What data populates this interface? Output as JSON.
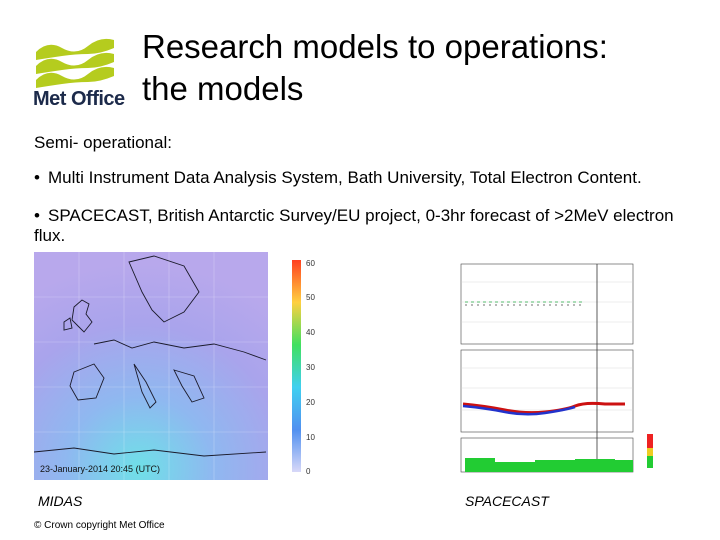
{
  "logo": {
    "text": "Met Office",
    "accent": "#b5cc1e"
  },
  "slide": {
    "title_line1": "Research models to operations:",
    "title_line2": "the models",
    "subtitle": "Semi- operational:",
    "bullets": [
      "Multi Instrument Data Analysis System, Bath University, Total Electron Content.",
      "SPACECAST, British Antarctic Survey/EU project, 0-3hr forecast of >2MeV electron flux."
    ]
  },
  "midas": {
    "timestamp": "23-January-2014 20:45 (UTC)",
    "colorbar_ticks": [
      "60",
      "50",
      "40",
      "30",
      "20",
      "10",
      "0"
    ],
    "caption": "MIDAS"
  },
  "spacecast": {
    "caption": "SPACECAST"
  },
  "footer": {
    "copyright": "© Crown copyright   Met Office"
  }
}
